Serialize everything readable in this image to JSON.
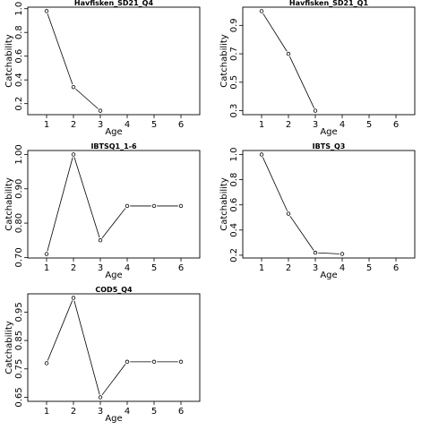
{
  "chart_data": [
    {
      "type": "line",
      "title": "Havfisken_SD21_Q4",
      "xlabel": "Age",
      "ylabel": "Catchability",
      "x": [
        1,
        2,
        3
      ],
      "values": [
        0.98,
        0.34,
        0.14
      ],
      "xlim": [
        0.3,
        6.7
      ],
      "ylim": [
        0.107,
        1.013
      ],
      "xticks": [
        1,
        2,
        3,
        4,
        5,
        6
      ],
      "yticks": [
        0.2,
        0.4,
        0.6,
        0.8,
        1.0
      ],
      "yticklabels": [
        "0.2",
        "0.4",
        "0.6",
        "0.8",
        "1.0"
      ]
    },
    {
      "type": "line",
      "title": "Havfisken_SD21_Q1",
      "xlabel": "Age",
      "ylabel": "Catchability",
      "x": [
        1,
        2,
        3
      ],
      "values": [
        1.0,
        0.7,
        0.3
      ],
      "xlim": [
        0.3,
        6.7
      ],
      "ylim": [
        0.272,
        1.028
      ],
      "xticks": [
        1,
        2,
        3,
        4,
        5,
        6
      ],
      "yticks": [
        0.3,
        0.5,
        0.7,
        0.9
      ],
      "yticklabels": [
        "0.3",
        "0.5",
        "0.7",
        "0.9"
      ]
    },
    {
      "type": "line",
      "title": "IBTSQ1_1-6",
      "xlabel": "Age",
      "ylabel": "Catchability",
      "x": [
        1,
        2,
        3,
        4,
        5,
        6
      ],
      "values": [
        0.71,
        1.0,
        0.75,
        0.85,
        0.85,
        0.85
      ],
      "xlim": [
        0.3,
        6.7
      ],
      "ylim": [
        0.6984,
        1.0116
      ],
      "xticks": [
        1,
        2,
        3,
        4,
        5,
        6
      ],
      "yticks": [
        0.7,
        0.8,
        0.9,
        1.0
      ],
      "yticklabels": [
        "0.70",
        "0.80",
        "0.90",
        "1.00"
      ]
    },
    {
      "type": "line",
      "title": "IBTS_Q3",
      "xlabel": "Age",
      "ylabel": "Catchability",
      "x": [
        1,
        2,
        3,
        4
      ],
      "values": [
        1.0,
        0.53,
        0.22,
        0.21
      ],
      "xlim": [
        0.3,
        6.7
      ],
      "ylim": [
        0.178,
        1.032
      ],
      "xticks": [
        1,
        2,
        3,
        4,
        5,
        6
      ],
      "yticks": [
        0.2,
        0.4,
        0.6,
        0.8,
        1.0
      ],
      "yticklabels": [
        "0.2",
        "0.4",
        "0.6",
        "0.8",
        "1.0"
      ]
    },
    {
      "type": "line",
      "title": "COD5_Q4",
      "xlabel": "Age",
      "ylabel": "Catchability",
      "x": [
        1,
        2,
        3,
        4,
        5,
        6
      ],
      "values": [
        0.77,
        1.0,
        0.65,
        0.775,
        0.775,
        0.775
      ],
      "xlim": [
        0.3,
        6.7
      ],
      "ylim": [
        0.6358,
        1.0142
      ],
      "xticks": [
        1,
        2,
        3,
        4,
        5,
        6
      ],
      "yticks": [
        0.65,
        0.75,
        0.85,
        0.95
      ],
      "yticklabels": [
        "0.65",
        "0.75",
        "0.85",
        "0.95"
      ]
    }
  ]
}
